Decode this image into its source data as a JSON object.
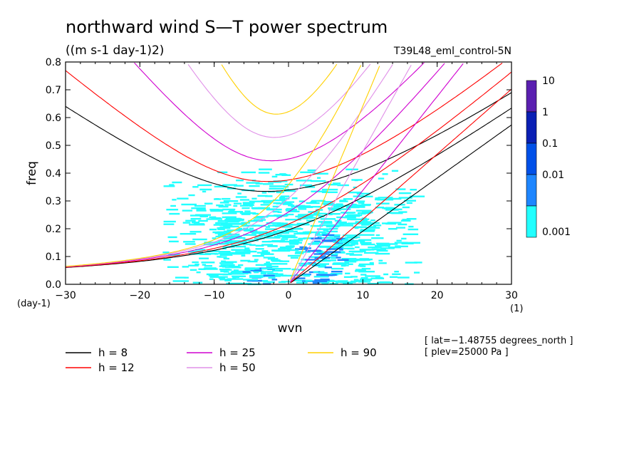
{
  "chart_data": {
    "type": "heatmap",
    "title": "northward wind S—T power spectrum",
    "subtitle": "((m s-1 day-1)2)",
    "run_label": "T39L48_eml_control-5N",
    "xlabel": "wvn",
    "ylabel": "freq",
    "x_unit_label": "(1)",
    "y_unit_label": "(day-1)",
    "xlim": [
      -30,
      30
    ],
    "ylim": [
      0,
      0.8
    ],
    "x_ticks": [
      -30,
      -20,
      -10,
      0,
      10,
      20,
      30
    ],
    "x_tick_labels": [
      "−30",
      "−20",
      "−10",
      "0",
      "10",
      "20",
      "30"
    ],
    "y_ticks": [
      0,
      0.1,
      0.2,
      0.3,
      0.4,
      0.5,
      0.6,
      0.7,
      0.8
    ],
    "y_tick_labels": [
      "0.0",
      "0.1",
      "0.2",
      "0.3",
      "0.4",
      "0.5",
      "0.6",
      "0.7",
      "0.8"
    ],
    "colorbar": {
      "levels": [
        "10",
        "1",
        "0.1",
        "0.01",
        "0.001"
      ],
      "colors": [
        "#5a1fb0",
        "#0a1fb4",
        "#0050e8",
        "#1e86ff",
        "#22ffff"
      ]
    },
    "dispersion_curves": [
      {
        "label": "h = 8",
        "h": 8,
        "color": "#000000"
      },
      {
        "label": "h = 12",
        "h": 12,
        "color": "#ff0000"
      },
      {
        "label": "h = 25",
        "h": 25,
        "color": "#d000d0"
      },
      {
        "label": "h = 50",
        "h": 50,
        "color": "#e090e8"
      },
      {
        "label": "h = 90",
        "h": 90,
        "color": "#ffd000"
      }
    ],
    "annotations": [
      "[ lat=−1.48755 degrees_north ]",
      "[ plev=25000 Pa ]"
    ]
  }
}
